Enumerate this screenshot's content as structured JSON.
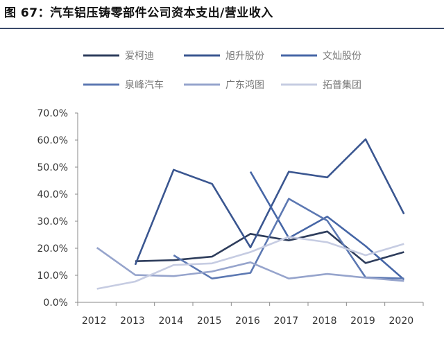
{
  "title": "图 67：汽车铝压铸零部件公司资本支出/营业收入",
  "chart_data": {
    "type": "line",
    "title": "图 67：汽车铝压铸零部件公司资本支出/营业收入",
    "xlabel": "",
    "ylabel": "",
    "categories": [
      "2012",
      "2013",
      "2014",
      "2015",
      "2016",
      "2017",
      "2018",
      "2019",
      "2020"
    ],
    "ylim": [
      0,
      70
    ],
    "yticks": [
      "0.0%",
      "10.0%",
      "20.0%",
      "30.0%",
      "40.0%",
      "50.0%",
      "60.0%",
      "70.0%"
    ],
    "grid": false,
    "legend_placement": "top",
    "series": [
      {
        "name": "爱柯迪",
        "color": "#2e3d5c",
        "values": [
          null,
          15.2,
          15.6,
          16.9,
          25.3,
          22.9,
          26.2,
          14.5,
          18.6
        ]
      },
      {
        "name": "旭升股份",
        "color": "#3a5690",
        "values": [
          null,
          13.9,
          49.0,
          43.8,
          20.3,
          48.3,
          46.2,
          60.3,
          32.7
        ]
      },
      {
        "name": "文灿股份",
        "color": "#4666a6",
        "values": [
          null,
          null,
          null,
          null,
          48.3,
          23.8,
          31.7,
          20.8,
          8.4
        ]
      },
      {
        "name": "泉峰汽车",
        "color": "#5c78b2",
        "values": [
          null,
          null,
          17.4,
          8.8,
          10.9,
          38.3,
          30.2,
          9.2,
          8.8
        ]
      },
      {
        "name": "广东鸿图",
        "color": "#96a4cc",
        "values": [
          20.2,
          10.1,
          9.7,
          11.4,
          14.8,
          8.8,
          10.5,
          9.1,
          7.9
        ]
      },
      {
        "name": "拓普集团",
        "color": "#c6cce2",
        "values": [
          5.0,
          7.7,
          13.8,
          14.4,
          18.6,
          24.2,
          22.2,
          17.4,
          21.6
        ]
      }
    ]
  }
}
